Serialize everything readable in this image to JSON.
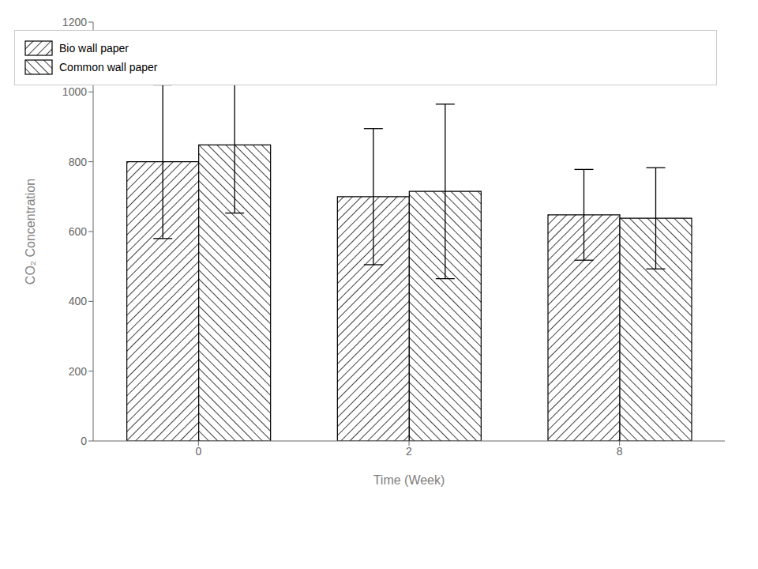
{
  "chart_data": {
    "type": "bar",
    "categories": [
      "0",
      "2",
      "8"
    ],
    "series": [
      {
        "name": "Bio wall paper",
        "color": "black",
        "values": [
          800,
          700,
          648
        ],
        "errors": [
          220,
          195,
          130
        ]
      },
      {
        "name": "Common wall paper",
        "color": "black",
        "values": [
          848,
          715,
          638
        ],
        "errors": [
          195,
          250,
          145
        ]
      }
    ],
    "xlabel": "Time (Week)",
    "ylabel": "CO₂ Concentration",
    "ylim": [
      0,
      1200
    ],
    "yticks": [
      0,
      200,
      400,
      600,
      800,
      1000,
      1200
    ],
    "grid": false,
    "legend": "upper right"
  }
}
